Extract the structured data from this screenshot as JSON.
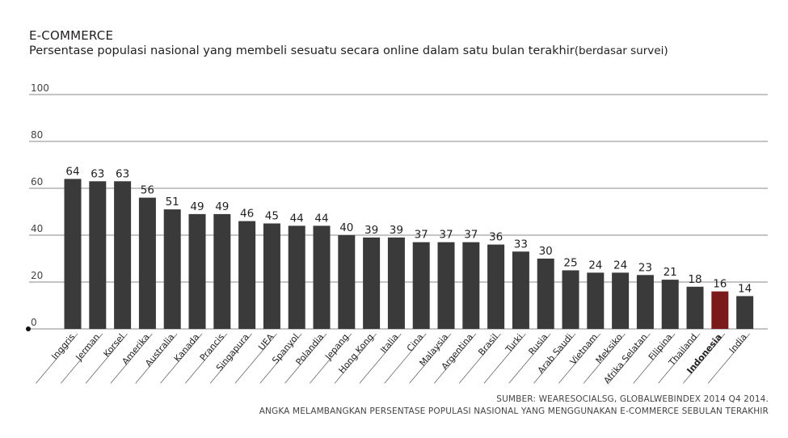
{
  "header": {
    "title": "E-COMMERCE",
    "subtitle": "Persentase populasi nasional yang membeli sesuatu secara online dalam satu bulan terakhir",
    "subtitle_note": "(berdasar survei)"
  },
  "footer": {
    "source_line1": "SUMBER: WEARESOCIALSG, GLOBALWEBINDEX 2014 Q4 2014.",
    "source_line2": "ANGKA MELAMBANGKAN PERSENTASE POPULASI NASIONAL YANG MENGGUNAKAN E-COMMERCE SEBULAN TERAKHIR"
  },
  "chart_data": {
    "type": "bar",
    "title": "E-COMMERCE",
    "subtitle": "Persentase populasi nasional yang membeli sesuatu secara online dalam satu bulan terakhir(berdasar survei)",
    "categories": [
      "Inggris",
      "Jerman",
      "Korsel",
      "Amerika",
      "Australia",
      "Kanada",
      "Prancis",
      "Singapura",
      "UEA",
      "Spanyol",
      "Polandia",
      "Jepang",
      "Hong Kong",
      "Italia",
      "Cina",
      "Malaysia",
      "Argentina",
      "Brasil",
      "Turki",
      "Rusia",
      "Arab Saudi",
      "Vietnam",
      "Meksiko",
      "Afrika Selatan",
      "Filipina",
      "Thailand",
      "Indonesia",
      "India"
    ],
    "values": [
      64,
      63,
      63,
      56,
      51,
      49,
      49,
      46,
      45,
      44,
      44,
      40,
      39,
      39,
      37,
      37,
      37,
      36,
      33,
      30,
      25,
      24,
      24,
      23,
      21,
      18,
      16,
      14
    ],
    "highlight": "Indonesia",
    "yticks": [
      0,
      20,
      40,
      60,
      80,
      100
    ],
    "ylim": [
      0,
      100
    ],
    "grid": true,
    "colors": {
      "bar": "#3a3a3a",
      "highlight": "#7a1a1a",
      "grid": "#8a8a8a"
    }
  }
}
